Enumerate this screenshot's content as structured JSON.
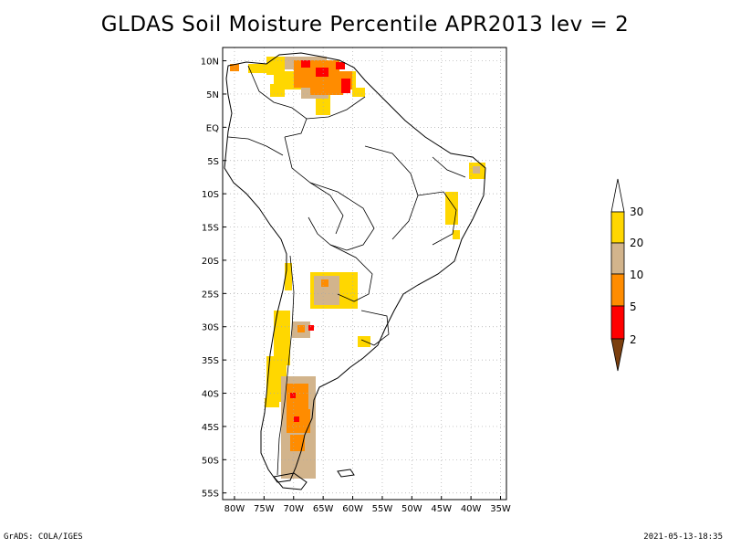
{
  "title": "GLDAS Soil Moisture Percentile APR2013 lev = 2",
  "map": {
    "lon_ticks": [
      "80W",
      "75W",
      "70W",
      "65W",
      "60W",
      "55W",
      "50W",
      "45W",
      "40W",
      "35W"
    ],
    "lat_ticks": [
      "10N",
      "5N",
      "EQ",
      "5S",
      "10S",
      "15S",
      "20S",
      "25S",
      "30S",
      "35S",
      "40S",
      "45S",
      "50S",
      "55S"
    ],
    "lon_range": [
      -82,
      -34
    ],
    "lat_range": [
      12,
      -56
    ],
    "grid": "dotted"
  },
  "colorbar": {
    "levels": [
      "2",
      "5",
      "10",
      "20",
      "30"
    ],
    "colors": {
      "lt2": "#7b3f0f",
      "2_5": "#ff0000",
      "5_10": "#ff8c00",
      "10_20": "#d2b48c",
      "20_30": "#ffd700",
      "gt30": "#ffffff"
    }
  },
  "footer": {
    "left": "GrADS: COLA/IGES",
    "right": "2021-05-13-18:35"
  }
}
